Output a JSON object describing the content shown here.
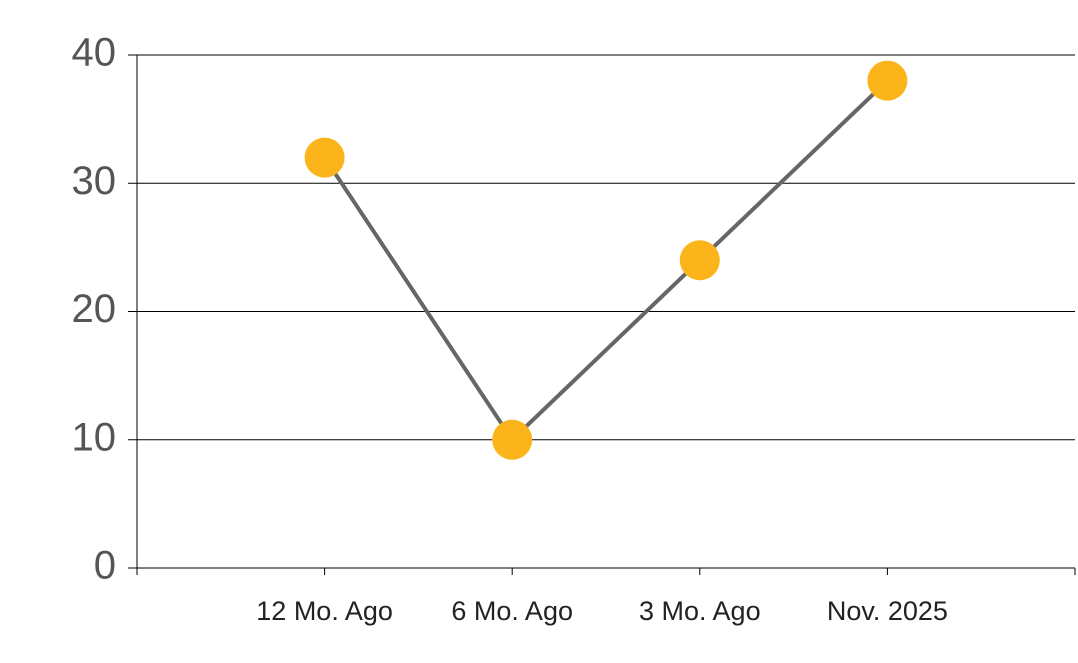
{
  "chart_data": {
    "type": "line",
    "categories": [
      "12 Mo. Ago",
      "6 Mo. Ago",
      "3 Mo. Ago",
      "Nov. 2025"
    ],
    "values": [
      32,
      10,
      24,
      38
    ],
    "line_color": "#666666",
    "marker_color": "#fbb41a",
    "ylim": [
      0,
      40
    ],
    "yticks": [
      0,
      10,
      20,
      30,
      40
    ],
    "grid": true
  }
}
